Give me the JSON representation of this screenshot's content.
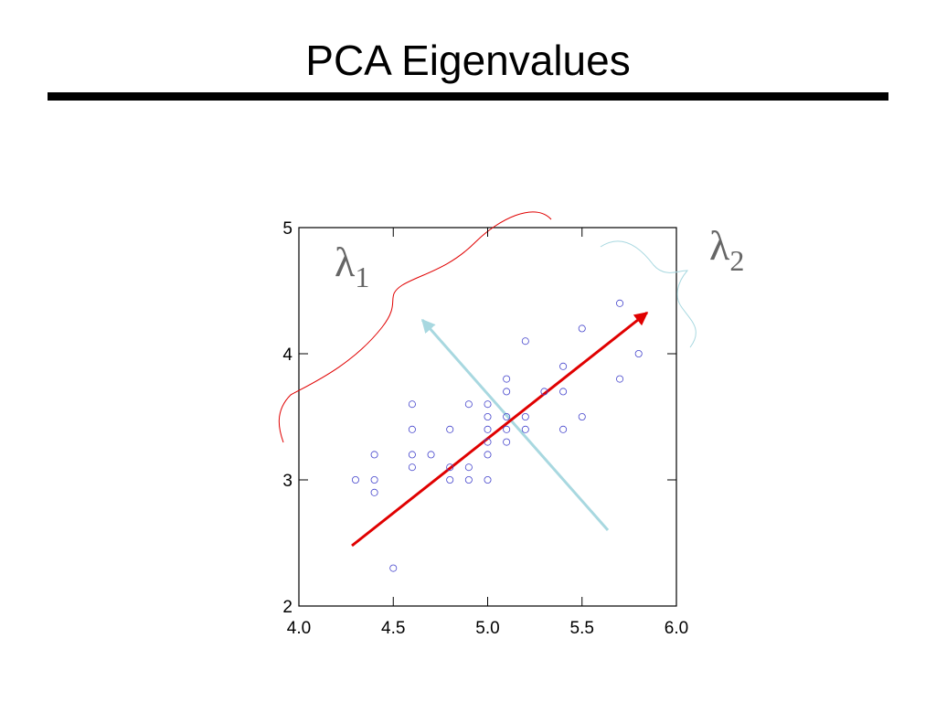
{
  "title": "PCA Eigenvalues",
  "chart_data": {
    "type": "scatter",
    "color": "#4444cc",
    "x": [
      4.3,
      4.4,
      4.4,
      4.4,
      4.5,
      4.6,
      4.6,
      4.6,
      4.6,
      4.7,
      4.8,
      4.8,
      4.8,
      4.9,
      4.9,
      4.9,
      5.0,
      5.0,
      5.0,
      5.0,
      5.0,
      5.0,
      5.1,
      5.1,
      5.1,
      5.1,
      5.1,
      5.2,
      5.2,
      5.2,
      5.3,
      5.4,
      5.4,
      5.4,
      5.5,
      5.5,
      5.7,
      5.7,
      5.8
    ],
    "values": [
      3.0,
      3.2,
      3.0,
      2.9,
      2.3,
      3.6,
      3.4,
      3.2,
      3.1,
      3.2,
      3.4,
      3.1,
      3.0,
      3.6,
      3.1,
      3.0,
      3.6,
      3.5,
      3.4,
      3.3,
      3.2,
      3.0,
      3.8,
      3.7,
      3.5,
      3.4,
      3.3,
      4.1,
      3.5,
      3.4,
      3.7,
      3.9,
      3.7,
      3.4,
      4.2,
      3.5,
      4.4,
      3.8,
      4.0
    ],
    "xlim": [
      4,
      6
    ],
    "xticks": [
      {
        "value": 4,
        "label": "4.0"
      },
      {
        "value": 4.5,
        "label": "4.5"
      },
      {
        "value": 5,
        "label": "5.0"
      },
      {
        "value": 5.5,
        "label": "5.5"
      },
      {
        "value": 6,
        "label": "6.0"
      }
    ],
    "ylim": [
      2,
      5
    ],
    "yticks": [
      2,
      3,
      4,
      5
    ],
    "annotations": [
      {
        "symbol": "λ",
        "subscript": "1"
      },
      {
        "symbol": "λ",
        "subscript": "2"
      }
    ]
  }
}
